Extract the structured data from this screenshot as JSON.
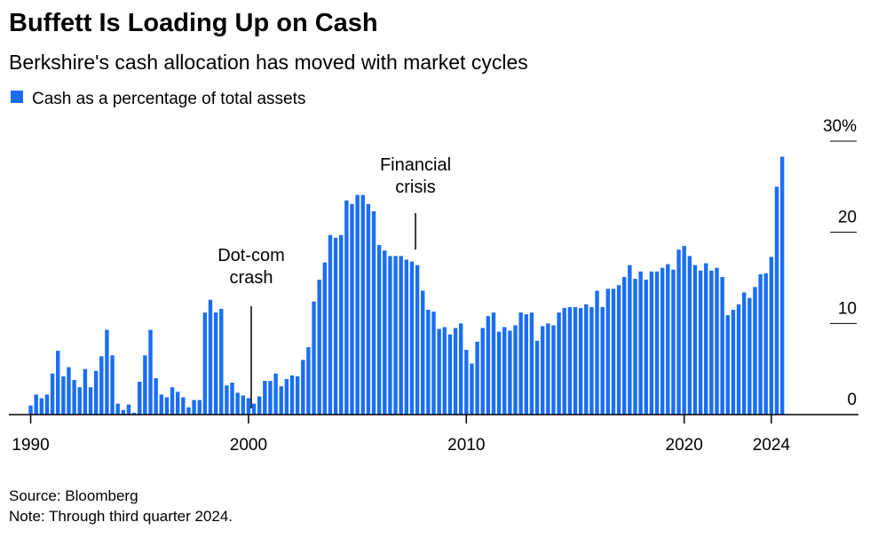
{
  "chart_data": {
    "type": "bar",
    "title": "Buffett Is Loading Up on Cash",
    "subtitle": "Berkshire's cash allocation has moved with market cycles",
    "annotations": [
      "Dot-com crash",
      "Financial crisis"
    ],
    "source": "Source: Bloomberg",
    "note": "Note: Through third quarter 2024.",
    "x": [
      1990,
      1990.25,
      1990.5,
      1990.75,
      1991,
      1991.25,
      1991.5,
      1991.75,
      1992,
      1992.25,
      1992.5,
      1992.75,
      1993,
      1993.25,
      1993.5,
      1993.75,
      1994,
      1994.25,
      1994.5,
      1994.75,
      1995,
      1995.25,
      1995.5,
      1995.75,
      1996,
      1996.25,
      1996.5,
      1996.75,
      1997,
      1997.25,
      1997.5,
      1997.75,
      1998,
      1998.25,
      1998.5,
      1998.75,
      1999,
      1999.25,
      1999.5,
      1999.75,
      2000,
      2000.25,
      2000.5,
      2000.75,
      2001,
      2001.25,
      2001.5,
      2001.75,
      2002,
      2002.25,
      2002.5,
      2002.75,
      2003,
      2003.25,
      2003.5,
      2003.75,
      2004,
      2004.25,
      2004.5,
      2004.75,
      2005,
      2005.25,
      2005.5,
      2005.75,
      2006,
      2006.25,
      2006.5,
      2006.75,
      2007,
      2007.25,
      2007.5,
      2007.75,
      2008,
      2008.25,
      2008.5,
      2008.75,
      2009,
      2009.25,
      2009.5,
      2009.75,
      2010,
      2010.25,
      2010.5,
      2010.75,
      2011,
      2011.25,
      2011.5,
      2011.75,
      2012,
      2012.25,
      2012.5,
      2012.75,
      2013,
      2013.25,
      2013.5,
      2013.75,
      2014,
      2014.25,
      2014.5,
      2014.75,
      2015,
      2015.25,
      2015.5,
      2015.75,
      2016,
      2016.25,
      2016.5,
      2016.75,
      2017,
      2017.25,
      2017.5,
      2017.75,
      2018,
      2018.25,
      2018.5,
      2018.75,
      2019,
      2019.25,
      2019.5,
      2019.75,
      2020,
      2020.25,
      2020.5,
      2020.75,
      2021,
      2021.25,
      2021.5,
      2021.75,
      2022,
      2022.25,
      2022.5,
      2022.75,
      2023,
      2023.25,
      2023.5,
      2023.75,
      2024,
      2024.25,
      2024.5
    ],
    "series": [
      {
        "name": "Cash as a percentage of total assets",
        "color": "#1a6ef5",
        "values": [
          1,
          2.2,
          1.8,
          2.2,
          4.5,
          7,
          4.2,
          5.2,
          3.8,
          3,
          5,
          3,
          4.8,
          6.4,
          9.3,
          6.5,
          1.2,
          0.5,
          1.1,
          0.2,
          3.6,
          6.5,
          9.3,
          4,
          2.2,
          1.9,
          3,
          2.5,
          1.9,
          0.8,
          1.6,
          1.6,
          11.2,
          12.6,
          11.2,
          11.6,
          3.2,
          3.5,
          2.4,
          2.1,
          1.8,
          1.2,
          2,
          3.7,
          3.7,
          4.5,
          3.1,
          3.9,
          4.3,
          4.2,
          6,
          7.4,
          12.4,
          14.8,
          16.7,
          19.7,
          19.4,
          19.7,
          23.5,
          23.1,
          24.1,
          24.1,
          23.1,
          22.3,
          18.6,
          18,
          17.4,
          17.4,
          17.4,
          17,
          16.8,
          16.4,
          13.6,
          11.5,
          11.3,
          9.4,
          9.6,
          8.8,
          9.5,
          10,
          7.1,
          5.6,
          8,
          9.5,
          10.8,
          11.2,
          9.1,
          9.6,
          9.2,
          9.8,
          11.2,
          11,
          11.2,
          8.1,
          9.7,
          10,
          9.8,
          11.2,
          11.7,
          11.8,
          11.8,
          11.7,
          12.1,
          11.8,
          13.6,
          11.8,
          13.8,
          13.8,
          14.2,
          15.1,
          16.4,
          14.9,
          15.7,
          14.8,
          15.7,
          15.7,
          16.1,
          16.5,
          15.9,
          18.1,
          18.5,
          17.4,
          16.4,
          15.8,
          16.6,
          15.8,
          16.1,
          15.1,
          10.9,
          11.5,
          12.1,
          13.4,
          12.8,
          14,
          15.4,
          15.5,
          17.3,
          25,
          28.3
        ]
      }
    ],
    "xlim": [
      1989,
      2028
    ],
    "xticks": [
      1990,
      2000,
      2010,
      2020,
      2024
    ],
    "ylim": [
      0,
      30
    ],
    "yticks": [
      0,
      10,
      20,
      {
        "value": 30,
        "label": "30%"
      }
    ]
  }
}
